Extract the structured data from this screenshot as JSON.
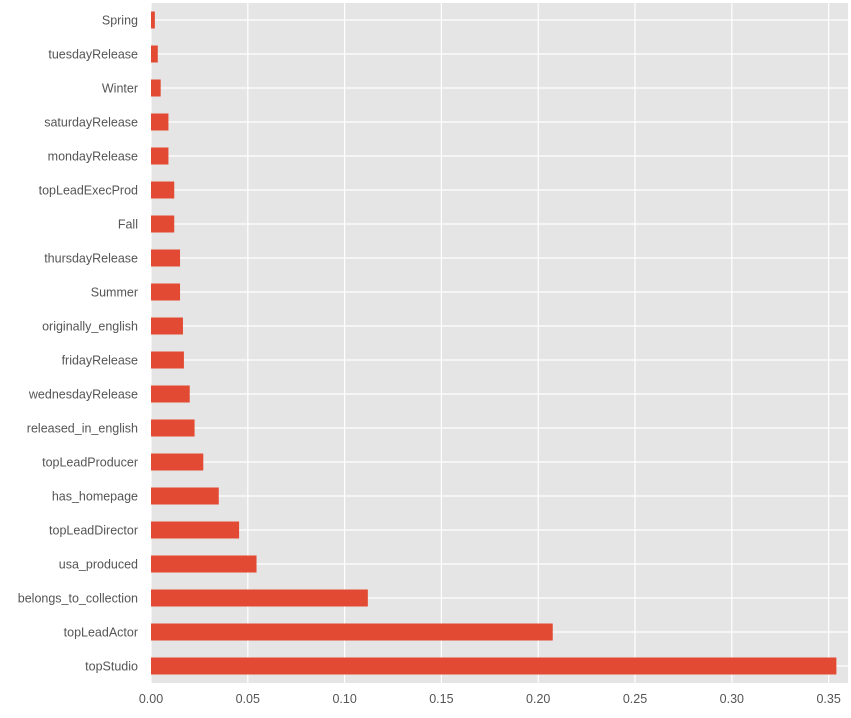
{
  "chart_data": {
    "type": "bar",
    "orientation": "horizontal",
    "style": "ggplot",
    "categories": [
      "Spring",
      "tuesdayRelease",
      "Winter",
      "saturdayRelease",
      "mondayRelease",
      "topLeadExecProd",
      "Fall",
      "thursdayRelease",
      "Summer",
      "originally_english",
      "fridayRelease",
      "wednesdayRelease",
      "released_in_english",
      "topLeadProducer",
      "has_homepage",
      "topLeadDirector",
      "usa_produced",
      "belongs_to_collection",
      "topLeadActor",
      "topStudio"
    ],
    "values": [
      0.002,
      0.0035,
      0.005,
      0.009,
      0.009,
      0.012,
      0.012,
      0.015,
      0.015,
      0.0165,
      0.017,
      0.02,
      0.0225,
      0.027,
      0.035,
      0.0455,
      0.0545,
      0.112,
      0.2075,
      0.354
    ],
    "xlim": [
      0,
      0.36
    ],
    "xticks": [
      0.0,
      0.05,
      0.1,
      0.15,
      0.2,
      0.25,
      0.3,
      0.35
    ],
    "xtick_labels": [
      "0.00",
      "0.05",
      "0.10",
      "0.15",
      "0.20",
      "0.25",
      "0.30",
      "0.35"
    ],
    "grid": true,
    "colors": {
      "bar": "#e24a33",
      "background": "#e5e5e5",
      "grid": "#ffffff",
      "tick_text": "#555555"
    }
  }
}
